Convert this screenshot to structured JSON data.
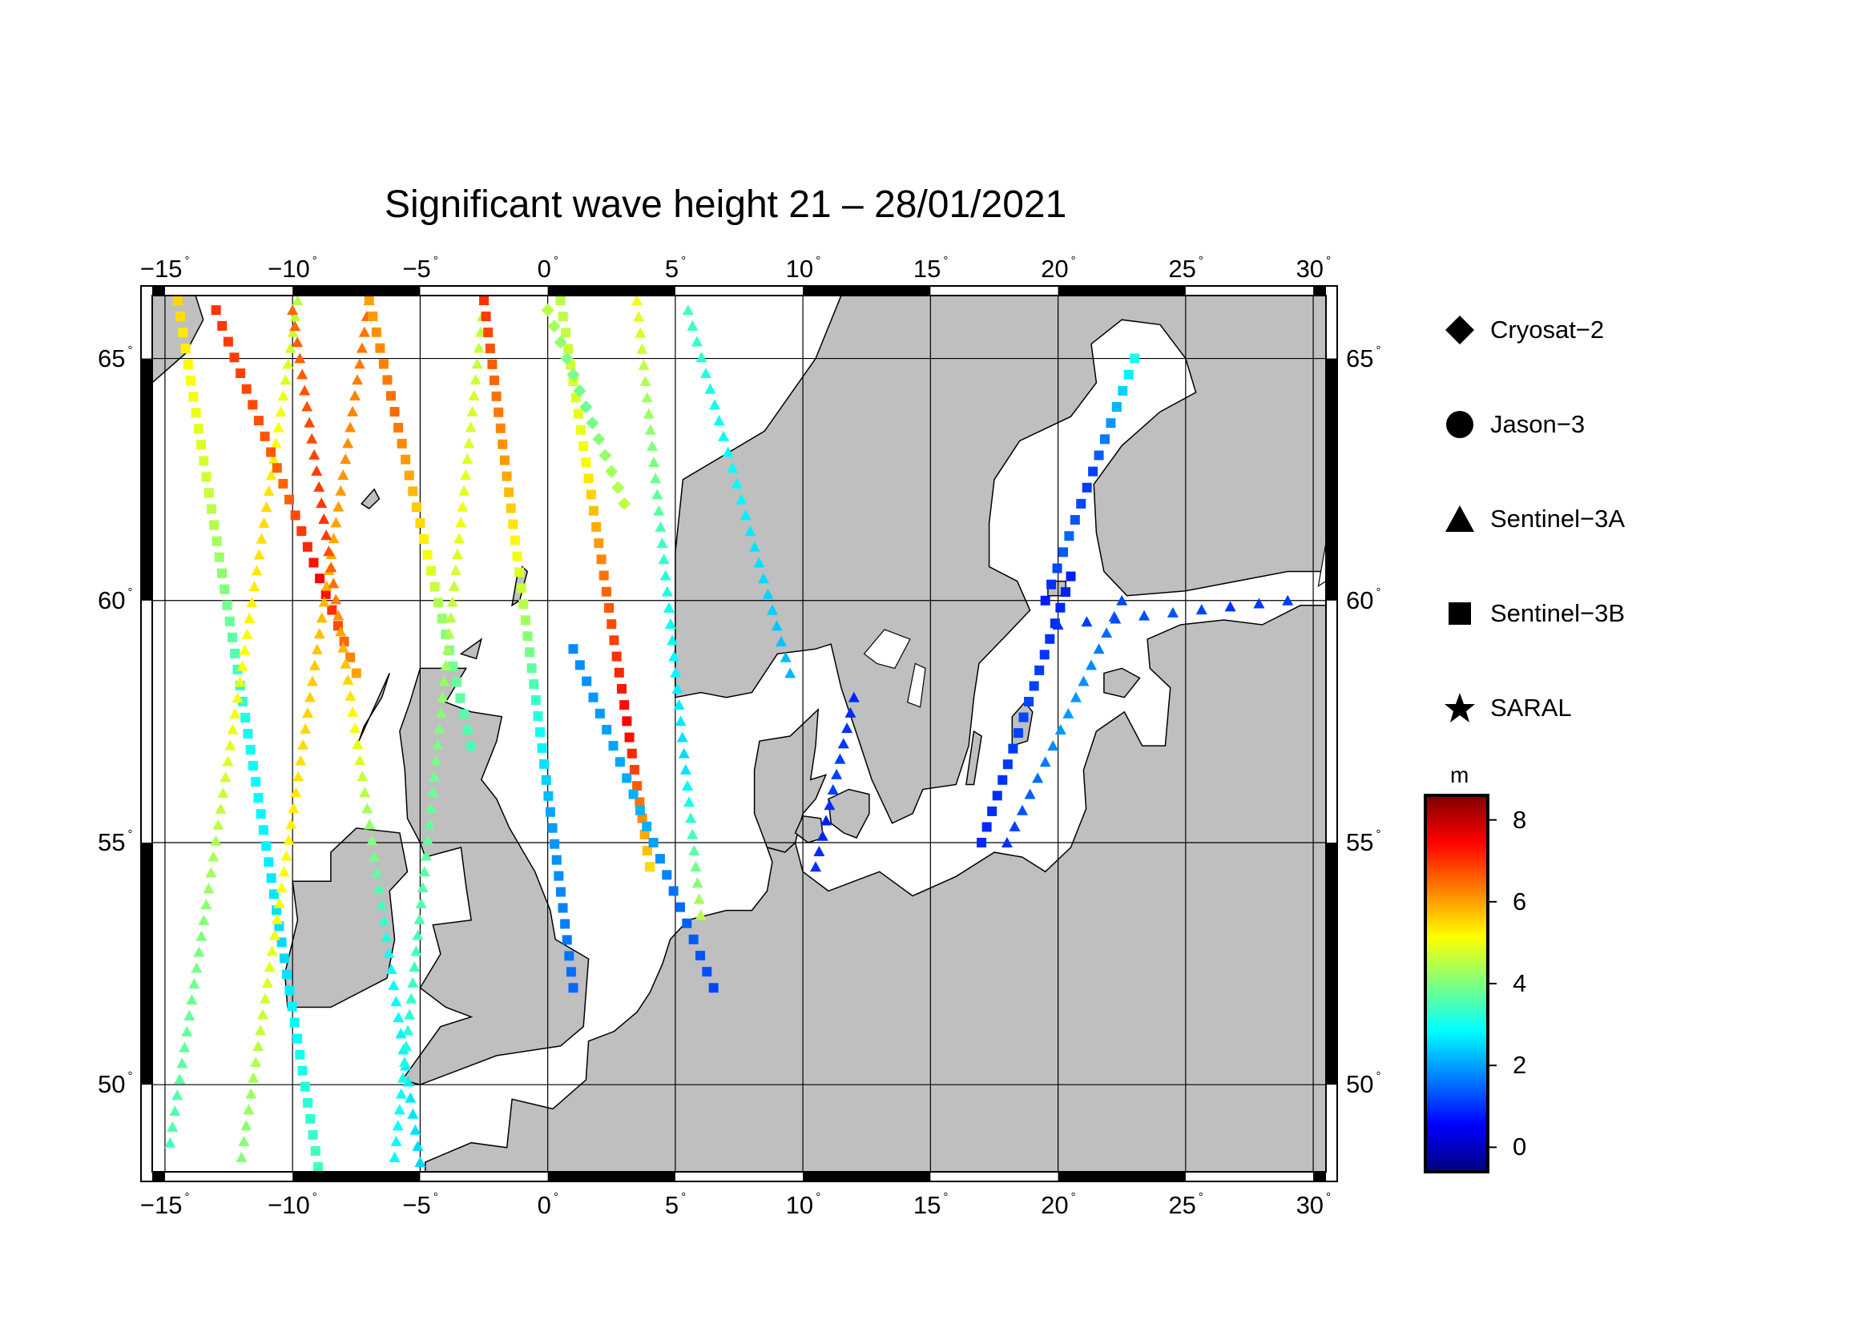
{
  "title": "Significant wave height 21 – 28/01/2021",
  "map": {
    "lon_range": [
      -15.5,
      30.5
    ],
    "lat_range": [
      48.2,
      66.3
    ],
    "lon_ticks": [
      "−15",
      "−10",
      "−5",
      "0",
      "5",
      "10",
      "15",
      "20",
      "25",
      "30"
    ],
    "lat_ticks": [
      "65",
      "60",
      "55",
      "50"
    ],
    "land_color": "#bfbfbf",
    "sea_color": "#ffffff"
  },
  "legend": {
    "items": [
      {
        "label": "Cryosat−2",
        "symbol": "diamond-icon"
      },
      {
        "label": "Jason−3",
        "symbol": "circle-icon"
      },
      {
        "label": "Sentinel−3A",
        "symbol": "triangle-icon"
      },
      {
        "label": "Sentinel−3B",
        "symbol": "square-icon"
      },
      {
        "label": "SARAL",
        "symbol": "star-icon"
      }
    ]
  },
  "colorbar": {
    "unit": "m",
    "min": -0.6,
    "max": 8.6,
    "ticks": [
      "8",
      "6",
      "4",
      "2",
      "0"
    ],
    "colormap": "jet"
  },
  "chart_data": {
    "type": "scatter",
    "title": "Significant wave height 21 – 28/01/2021",
    "variable_unit": "m",
    "tracks": [
      {
        "satellite": "Sentinel−3B",
        "start": [
          -14.5,
          66.2
        ],
        "end": [
          -9.0,
          48.3
        ],
        "hs": [
          5.5,
          4.5,
          3.0,
          2.5,
          3.5
        ]
      },
      {
        "satellite": "Sentinel−3A",
        "start": [
          -14.8,
          48.8
        ],
        "end": [
          -9.8,
          66.2
        ],
        "hs": [
          3.5,
          4.0,
          5.0,
          5.5,
          4.5
        ]
      },
      {
        "satellite": "Sentinel−3B",
        "start": [
          -13.0,
          66.0
        ],
        "end": [
          -7.5,
          58.5
        ],
        "hs": [
          7.0,
          6.8,
          6.5,
          7.5,
          6.0
        ]
      },
      {
        "satellite": "Sentinel−3A",
        "start": [
          -12.0,
          48.5
        ],
        "end": [
          -7.0,
          66.2
        ],
        "hs": [
          4.0,
          5.0,
          5.5,
          6.0,
          6.5
        ]
      },
      {
        "satellite": "Sentinel−3A",
        "start": [
          -10.0,
          66.0
        ],
        "end": [
          -5.0,
          48.4
        ],
        "hs": [
          6.5,
          7.0,
          5.0,
          3.0,
          2.5
        ]
      },
      {
        "satellite": "Sentinel−3B",
        "start": [
          -7.0,
          66.2
        ],
        "end": [
          -3.0,
          57.0
        ],
        "hs": [
          6.0,
          6.5,
          5.5,
          4.0,
          3.5
        ]
      },
      {
        "satellite": "Sentinel−3A",
        "start": [
          -6.0,
          48.5
        ],
        "end": [
          -2.5,
          66.2
        ],
        "hs": [
          2.8,
          3.5,
          4.0,
          5.0,
          4.5
        ]
      },
      {
        "satellite": "Sentinel−3B",
        "start": [
          -2.5,
          66.2
        ],
        "end": [
          1.0,
          52.0
        ],
        "hs": [
          7.0,
          6.0,
          4.0,
          2.0,
          1.5
        ]
      },
      {
        "satellite": "Sentinel−3B",
        "start": [
          0.5,
          66.2
        ],
        "end": [
          4.0,
          54.5
        ],
        "hs": [
          4.5,
          5.0,
          6.5,
          7.5,
          5.5
        ]
      },
      {
        "satellite": "Cryosat−2",
        "start": [
          0.0,
          66.0
        ],
        "end": [
          3.0,
          62.0
        ],
        "hs": [
          4.5,
          4.0,
          3.8,
          4.2,
          4.6
        ]
      },
      {
        "satellite": "Sentinel−3A",
        "start": [
          3.5,
          66.2
        ],
        "end": [
          6.0,
          53.5
        ],
        "hs": [
          5.0,
          4.0,
          3.0,
          2.5,
          4.5
        ]
      },
      {
        "satellite": "Sentinel−3A",
        "start": [
          5.5,
          66.0
        ],
        "end": [
          9.5,
          58.5
        ],
        "hs": [
          3.5,
          3.0,
          2.8,
          2.5,
          2.2
        ]
      },
      {
        "satellite": "Sentinel−3B",
        "start": [
          1.0,
          59.0
        ],
        "end": [
          6.5,
          52.0
        ],
        "hs": [
          1.8,
          2.0,
          2.2,
          1.5,
          1.2
        ]
      },
      {
        "satellite": "Sentinel−3A",
        "start": [
          10.5,
          54.5
        ],
        "end": [
          12.0,
          58.0
        ],
        "hs": [
          1.0,
          0.8,
          1.2,
          1.0,
          0.9
        ]
      },
      {
        "satellite": "Sentinel−3B",
        "start": [
          17.0,
          55.0
        ],
        "end": [
          20.5,
          60.5
        ],
        "hs": [
          0.9,
          1.0,
          1.2,
          1.0,
          0.8
        ]
      },
      {
        "satellite": "Sentinel−3A",
        "start": [
          18.0,
          55.0
        ],
        "end": [
          22.5,
          60.0
        ],
        "hs": [
          1.0,
          1.5,
          2.0,
          1.8,
          1.2
        ]
      },
      {
        "satellite": "Sentinel−3B",
        "start": [
          23.0,
          65.0
        ],
        "end": [
          19.5,
          60.0
        ],
        "hs": [
          3.0,
          2.0,
          1.0,
          1.5,
          0.8
        ]
      },
      {
        "satellite": "Sentinel−3A",
        "start": [
          20.0,
          59.5
        ],
        "end": [
          29.0,
          60.0
        ],
        "hs": [
          1.0,
          1.2,
          1.3,
          1.0,
          1.1
        ]
      }
    ]
  }
}
